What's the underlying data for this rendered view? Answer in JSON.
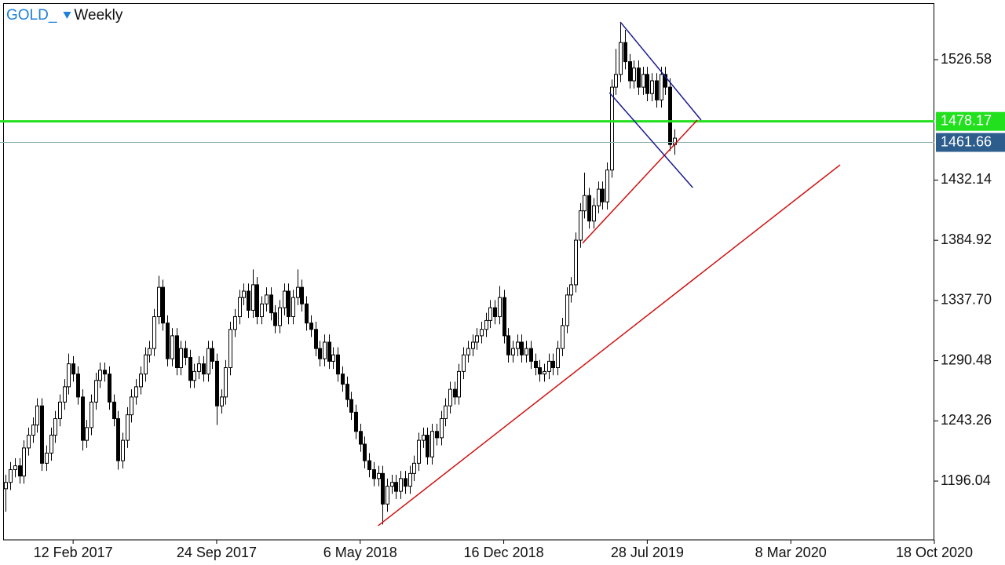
{
  "chart_data": {
    "type": "candlestick",
    "title": "GOLD_",
    "period": "Weekly",
    "x": [
      "2016-10-30",
      "2016-11-06",
      "2016-11-13",
      "2016-11-20",
      "2016-11-27",
      "2016-12-04",
      "2016-12-11",
      "2016-12-18",
      "2016-12-25",
      "2017-01-01",
      "2017-01-08",
      "2017-01-15",
      "2017-01-22",
      "2017-01-29",
      "2017-02-05",
      "2017-02-12",
      "2017-02-19",
      "2017-02-26",
      "2017-03-05",
      "2017-03-12",
      "2017-03-19",
      "2017-03-26",
      "2017-04-02",
      "2017-04-09",
      "2017-04-16",
      "2017-04-23",
      "2017-04-30",
      "2017-05-07",
      "2017-05-14",
      "2017-05-21",
      "2017-05-28",
      "2017-06-04",
      "2017-06-11",
      "2017-06-18",
      "2017-06-25",
      "2017-07-02",
      "2017-07-09",
      "2017-07-16",
      "2017-07-23",
      "2017-07-30",
      "2017-08-06",
      "2017-08-13",
      "2017-08-20",
      "2017-08-27",
      "2017-09-03",
      "2017-09-10",
      "2017-09-17",
      "2017-09-24",
      "2017-10-01",
      "2017-10-08",
      "2017-10-15",
      "2017-10-22",
      "2017-10-29",
      "2017-11-05",
      "2017-11-12",
      "2017-11-19",
      "2017-11-26",
      "2017-12-03",
      "2017-12-10",
      "2017-12-17",
      "2017-12-24",
      "2017-12-31",
      "2018-01-07",
      "2018-01-14",
      "2018-01-21",
      "2018-01-28",
      "2018-02-04",
      "2018-02-11",
      "2018-02-18",
      "2018-02-25",
      "2018-03-04",
      "2018-03-11",
      "2018-03-18",
      "2018-03-25",
      "2018-04-01",
      "2018-04-08",
      "2018-04-15",
      "2018-04-22",
      "2018-04-29",
      "2018-05-06",
      "2018-05-13",
      "2018-05-20",
      "2018-05-27",
      "2018-06-03",
      "2018-06-10",
      "2018-06-17",
      "2018-06-24",
      "2018-07-01",
      "2018-07-08",
      "2018-07-15",
      "2018-07-22",
      "2018-07-29",
      "2018-08-05",
      "2018-08-12",
      "2018-08-19",
      "2018-08-26",
      "2018-09-02",
      "2018-09-09",
      "2018-09-16",
      "2018-09-23",
      "2018-09-30",
      "2018-10-07",
      "2018-10-14",
      "2018-10-21",
      "2018-10-28",
      "2018-11-04",
      "2018-11-11",
      "2018-11-18",
      "2018-11-25",
      "2018-12-02",
      "2018-12-09",
      "2018-12-16",
      "2018-12-23",
      "2018-12-30",
      "2019-01-06",
      "2019-01-13",
      "2019-01-20",
      "2019-01-27",
      "2019-02-03",
      "2019-02-10",
      "2019-02-17",
      "2019-02-24",
      "2019-03-03",
      "2019-03-10",
      "2019-03-17",
      "2019-03-24",
      "2019-03-31",
      "2019-04-07",
      "2019-04-14",
      "2019-04-21",
      "2019-04-28",
      "2019-05-05",
      "2019-05-12",
      "2019-05-19",
      "2019-05-26",
      "2019-06-02",
      "2019-06-09",
      "2019-06-16",
      "2019-06-23",
      "2019-06-30",
      "2019-07-07",
      "2019-07-14",
      "2019-07-21",
      "2019-07-28",
      "2019-08-04",
      "2019-08-11",
      "2019-08-18",
      "2019-08-25",
      "2019-09-01",
      "2019-09-08"
    ],
    "open": [
      1190,
      1195,
      1205,
      1208,
      1200,
      1222,
      1232,
      1240,
      1255,
      1210,
      1218,
      1232,
      1245,
      1258,
      1270,
      1288,
      1280,
      1262,
      1228,
      1238,
      1258,
      1275,
      1283,
      1280,
      1258,
      1245,
      1212,
      1228,
      1248,
      1262,
      1270,
      1280,
      1295,
      1300,
      1325,
      1348,
      1320,
      1292,
      1310,
      1285,
      1300,
      1293,
      1275,
      1282,
      1288,
      1280,
      1300,
      1290,
      1255,
      1262,
      1285,
      1315,
      1325,
      1340,
      1345,
      1330,
      1350,
      1325,
      1335,
      1342,
      1328,
      1318,
      1332,
      1345,
      1325,
      1340,
      1348,
      1335,
      1320,
      1315,
      1300,
      1292,
      1305,
      1290,
      1295,
      1280,
      1272,
      1260,
      1250,
      1235,
      1225,
      1212,
      1205,
      1198,
      1202,
      1178,
      1192,
      1195,
      1188,
      1198,
      1192,
      1202,
      1210,
      1228,
      1232,
      1215,
      1235,
      1230,
      1245,
      1255,
      1268,
      1262,
      1282,
      1295,
      1300,
      1305,
      1310,
      1315,
      1322,
      1332,
      1325,
      1340,
      1310,
      1295,
      1300,
      1305,
      1295,
      1300,
      1290,
      1285,
      1280,
      1282,
      1290,
      1285,
      1300,
      1318,
      1342,
      1350,
      1385,
      1408,
      1420,
      1400,
      1412,
      1425,
      1415,
      1440,
      1505,
      1515,
      1540,
      1525,
      1510,
      1520,
      1505,
      1515,
      1500,
      1510,
      1495,
      1515,
      1505,
      1460
    ],
    "high": [
      1201,
      1211,
      1214,
      1214,
      1228,
      1238,
      1246,
      1261,
      1261,
      1224,
      1238,
      1251,
      1264,
      1276,
      1296,
      1294,
      1286,
      1268,
      1244,
      1264,
      1281,
      1289,
      1289,
      1286,
      1264,
      1251,
      1234,
      1254,
      1268,
      1276,
      1286,
      1301,
      1306,
      1331,
      1357,
      1354,
      1326,
      1316,
      1316,
      1306,
      1306,
      1299,
      1288,
      1294,
      1294,
      1306,
      1306,
      1296,
      1268,
      1291,
      1321,
      1331,
      1346,
      1351,
      1351,
      1362,
      1356,
      1341,
      1348,
      1348,
      1334,
      1338,
      1351,
      1351,
      1346,
      1362,
      1354,
      1341,
      1326,
      1321,
      1306,
      1311,
      1311,
      1301,
      1301,
      1286,
      1278,
      1266,
      1256,
      1241,
      1231,
      1218,
      1211,
      1208,
      1208,
      1198,
      1201,
      1201,
      1204,
      1204,
      1208,
      1216,
      1234,
      1238,
      1238,
      1241,
      1241,
      1251,
      1261,
      1274,
      1274,
      1288,
      1301,
      1306,
      1311,
      1316,
      1321,
      1328,
      1338,
      1338,
      1349,
      1346,
      1316,
      1306,
      1311,
      1311,
      1306,
      1306,
      1296,
      1291,
      1288,
      1296,
      1296,
      1306,
      1324,
      1348,
      1356,
      1391,
      1414,
      1438,
      1426,
      1418,
      1431,
      1431,
      1446,
      1511,
      1535,
      1556,
      1550,
      1531,
      1526,
      1526,
      1521,
      1521,
      1516,
      1516,
      1521,
      1521,
      1512,
      1472
    ],
    "low": [
      1172,
      1189,
      1199,
      1194,
      1194,
      1216,
      1226,
      1234,
      1204,
      1204,
      1212,
      1226,
      1239,
      1252,
      1264,
      1274,
      1256,
      1220,
      1222,
      1232,
      1252,
      1269,
      1274,
      1252,
      1239,
      1205,
      1206,
      1222,
      1242,
      1256,
      1264,
      1274,
      1289,
      1294,
      1319,
      1314,
      1286,
      1286,
      1279,
      1279,
      1287,
      1269,
      1269,
      1276,
      1274,
      1274,
      1284,
      1240,
      1249,
      1256,
      1279,
      1309,
      1319,
      1334,
      1324,
      1324,
      1319,
      1319,
      1329,
      1322,
      1312,
      1312,
      1326,
      1319,
      1319,
      1334,
      1329,
      1314,
      1309,
      1294,
      1286,
      1286,
      1284,
      1284,
      1274,
      1266,
      1254,
      1244,
      1229,
      1219,
      1206,
      1199,
      1192,
      1192,
      1162,
      1172,
      1186,
      1182,
      1182,
      1186,
      1186,
      1196,
      1204,
      1222,
      1209,
      1209,
      1224,
      1224,
      1239,
      1249,
      1256,
      1256,
      1276,
      1289,
      1294,
      1299,
      1304,
      1309,
      1316,
      1319,
      1319,
      1304,
      1289,
      1289,
      1294,
      1289,
      1289,
      1284,
      1279,
      1274,
      1274,
      1276,
      1279,
      1279,
      1294,
      1312,
      1336,
      1344,
      1379,
      1402,
      1394,
      1394,
      1406,
      1409,
      1409,
      1434,
      1499,
      1509,
      1519,
      1504,
      1504,
      1499,
      1499,
      1494,
      1494,
      1489,
      1489,
      1499,
      1455,
      1452
    ],
    "close": [
      1195,
      1205,
      1208,
      1200,
      1222,
      1232,
      1240,
      1255,
      1210,
      1218,
      1232,
      1245,
      1258,
      1270,
      1288,
      1280,
      1262,
      1228,
      1238,
      1258,
      1275,
      1283,
      1280,
      1258,
      1245,
      1212,
      1228,
      1248,
      1262,
      1270,
      1280,
      1295,
      1300,
      1325,
      1348,
      1320,
      1292,
      1310,
      1285,
      1300,
      1293,
      1275,
      1282,
      1288,
      1280,
      1300,
      1290,
      1255,
      1262,
      1285,
      1315,
      1325,
      1340,
      1345,
      1330,
      1350,
      1325,
      1335,
      1342,
      1328,
      1318,
      1332,
      1345,
      1325,
      1340,
      1348,
      1335,
      1320,
      1315,
      1300,
      1292,
      1305,
      1290,
      1295,
      1280,
      1272,
      1260,
      1250,
      1235,
      1225,
      1212,
      1205,
      1198,
      1202,
      1178,
      1192,
      1195,
      1188,
      1198,
      1192,
      1202,
      1210,
      1228,
      1232,
      1215,
      1235,
      1230,
      1245,
      1255,
      1268,
      1262,
      1282,
      1295,
      1300,
      1305,
      1310,
      1315,
      1322,
      1332,
      1325,
      1340,
      1310,
      1295,
      1300,
      1305,
      1295,
      1300,
      1290,
      1285,
      1280,
      1282,
      1290,
      1285,
      1300,
      1318,
      1342,
      1350,
      1385,
      1408,
      1420,
      1400,
      1412,
      1425,
      1415,
      1440,
      1505,
      1515,
      1540,
      1525,
      1510,
      1520,
      1505,
      1515,
      1500,
      1510,
      1495,
      1515,
      1505,
      1460,
      1465
    ],
    "up_color": "#ffffff",
    "down_color": "#000000",
    "ylim": [
      1149.9,
      1570.3
    ],
    "yticks": [
      1196.04,
      1243.26,
      1290.48,
      {
        "value": 1337.7,
        "label": "1337.70"
      },
      1384.92,
      1432.14,
      1526.58
    ],
    "xlim": [
      "2016-10-27",
      "2020-10-18"
    ],
    "xticks": [
      {
        "value": "2017-02-12",
        "label": "12 Feb 2017"
      },
      {
        "value": "2017-09-24",
        "label": "24 Sep 2017"
      },
      {
        "value": "2018-05-06",
        "label": "6 May 2018"
      },
      {
        "value": "2018-12-16",
        "label": "16 Dec 2018"
      },
      {
        "value": "2019-07-28",
        "label": "28 Jul 2019"
      },
      {
        "value": "2020-03-08",
        "label": "8 Mar 2020"
      },
      {
        "value": "2020-10-18",
        "label": "18 Oct 2020"
      }
    ],
    "hlines": [
      {
        "value": 1478.17,
        "color": "#22e01e",
        "label_color": "#22e01e",
        "text_color": "#ffffff"
      },
      {
        "value": 1461.66,
        "color": "#8fb0b0",
        "label_color": "#2d5d8c",
        "text_color": "#ffffff"
      }
    ],
    "trendlines": [
      {
        "color": "#d01010",
        "x": [
          "2018-06-03",
          "2020-05-24"
        ],
        "y": [
          1161.0,
          1444.1
        ]
      },
      {
        "color": "#d01010",
        "x": [
          "2019-04-18",
          "2019-10-14"
        ],
        "y": [
          1382.6,
          1479.2
        ]
      },
      {
        "color": "#1a1a90",
        "x": [
          "2019-06-16",
          "2019-10-20"
        ],
        "y": [
          1556.1,
          1479.2
        ]
      },
      {
        "color": "#1a1a90",
        "x": [
          "2019-05-30",
          "2019-10-07"
        ],
        "y": [
          1500.7,
          1426.2
        ]
      }
    ]
  }
}
